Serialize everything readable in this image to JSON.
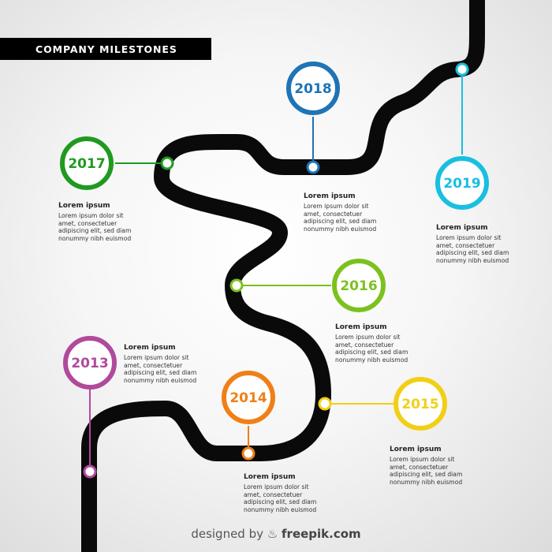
{
  "title": "COMPANY MILESTONES",
  "milestones": [
    {
      "year": "2017",
      "color": "#1f9a1f",
      "heading": "Lorem ipsum",
      "lines": [
        "Lorem ipsum dolor sit",
        "amet, consectetuer",
        "adipiscing elit, sed diam",
        "nonummy nibh euismod"
      ]
    },
    {
      "year": "2018",
      "color": "#1e74b5",
      "heading": "Lorem ipsum",
      "lines": [
        "Lorem ipsum dolor sit",
        "amet, consectetuer",
        "adipiscing elit, sed diam",
        "nonummy nibh euismod"
      ]
    },
    {
      "year": "2019",
      "color": "#19bfe0",
      "heading": "Lorem ipsum",
      "lines": [
        "Lorem ipsum dolor sit",
        "amet, consectetuer",
        "adipiscing elit, sed diam",
        "nonummy nibh euismod"
      ]
    },
    {
      "year": "2016",
      "color": "#7cc11d",
      "heading": "Lorem ipsum",
      "lines": [
        "Lorem ipsum dolor sit",
        "amet, consectetuer",
        "adipiscing elit, sed diam",
        "nonummy nibh euismod"
      ]
    },
    {
      "year": "2013",
      "color": "#b04a9c",
      "heading": "Lorem ipsum",
      "lines": [
        "Lorem ipsum dolor sit",
        "amet, consectetuer",
        "adipiscing elit, sed diam",
        "nonummy nibh euismod"
      ]
    },
    {
      "year": "2014",
      "color": "#f07f16",
      "heading": "Lorem ipsum",
      "lines": [
        "Lorem ipsum dolor sit",
        "amet, consectetuer",
        "adipiscing elit, sed diam",
        "nonummy nibh euismod"
      ]
    },
    {
      "year": "2015",
      "color": "#f2cf16",
      "heading": "Lorem ipsum",
      "lines": [
        "Lorem ipsum dolor sit",
        "amet, consectetuer",
        "adipiscing elit, sed diam",
        "nonummy nibh euismod"
      ]
    }
  ],
  "credit": {
    "prefix": "designed by",
    "icon": "freepik-logo-icon",
    "brand": "freepik.com"
  }
}
